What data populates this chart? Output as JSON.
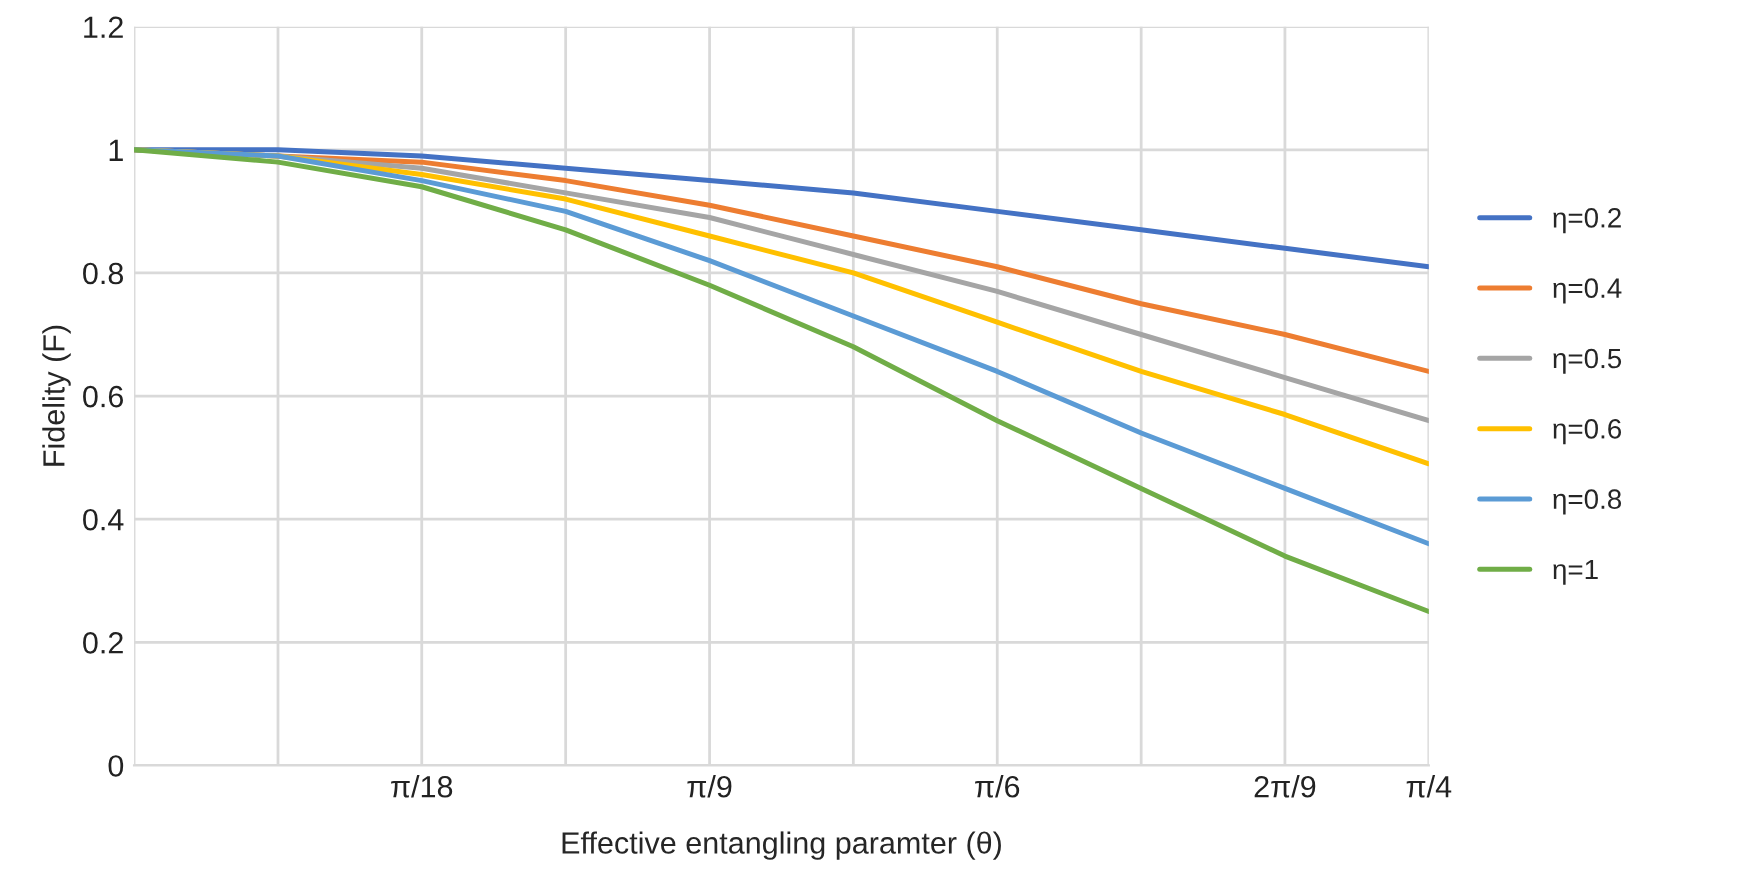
{
  "chart_data": {
    "type": "line",
    "xlabel": "Effective entangling paramter (θ)",
    "ylabel": "Fidelity (F)",
    "x": [
      0,
      0.0873,
      0.1745,
      0.2618,
      0.3491,
      0.4363,
      0.5236,
      0.6109,
      0.6981,
      0.7854
    ],
    "xlim": [
      0,
      0.7854
    ],
    "xticks": [
      {
        "value": 0,
        "label": null
      },
      {
        "value": 0.0873,
        "label": null
      },
      {
        "value": 0.1745,
        "label": "π/18"
      },
      {
        "value": 0.2618,
        "label": null
      },
      {
        "value": 0.3491,
        "label": "π/9"
      },
      {
        "value": 0.4363,
        "label": null
      },
      {
        "value": 0.5236,
        "label": "π/6"
      },
      {
        "value": 0.6109,
        "label": null
      },
      {
        "value": 0.6981,
        "label": "2π/9"
      },
      {
        "value": 0.7854,
        "label": "π/4"
      }
    ],
    "ylim": [
      0,
      1.2
    ],
    "yticks": [
      0,
      0.2,
      0.4,
      0.6,
      0.8,
      1,
      1.2
    ],
    "grid": true,
    "legend": "right",
    "marker": "none",
    "line_style": "solid",
    "series": [
      {
        "name": "η=0.2",
        "color": "#4472c4",
        "values": [
          1.0,
          1.0,
          0.99,
          0.97,
          0.95,
          0.93,
          0.9,
          0.87,
          0.84,
          0.81
        ]
      },
      {
        "name": "η=0.4",
        "color": "#ed7d31",
        "values": [
          1.0,
          0.99,
          0.98,
          0.95,
          0.91,
          0.86,
          0.81,
          0.75,
          0.7,
          0.64
        ]
      },
      {
        "name": "η=0.5",
        "color": "#a5a5a5",
        "values": [
          1.0,
          0.99,
          0.97,
          0.93,
          0.89,
          0.83,
          0.77,
          0.7,
          0.63,
          0.56
        ]
      },
      {
        "name": "η=0.6",
        "color": "#ffc000",
        "values": [
          1.0,
          0.99,
          0.96,
          0.92,
          0.86,
          0.8,
          0.72,
          0.64,
          0.57,
          0.49
        ]
      },
      {
        "name": "η=0.8",
        "color": "#5b9bd5",
        "values": [
          1.0,
          0.99,
          0.95,
          0.9,
          0.82,
          0.73,
          0.64,
          0.54,
          0.45,
          0.36
        ]
      },
      {
        "name": "η=1",
        "color": "#70ad47",
        "values": [
          1.0,
          0.98,
          0.94,
          0.87,
          0.78,
          0.68,
          0.56,
          0.45,
          0.34,
          0.25
        ]
      }
    ]
  }
}
